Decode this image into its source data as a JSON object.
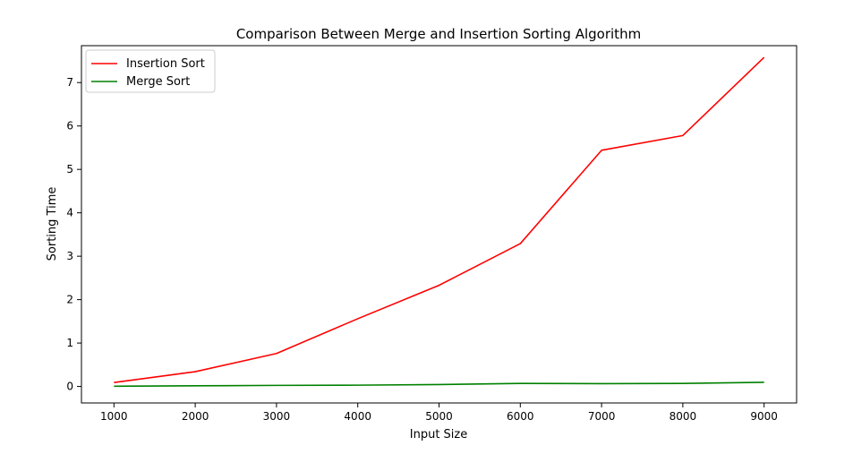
{
  "chart_data": {
    "type": "line",
    "title": "Comparison Between Merge and Insertion Sorting Algorithm",
    "xlabel": "Input Size",
    "ylabel": "Sorting Time",
    "x": [
      1000,
      2000,
      3000,
      4000,
      5000,
      6000,
      7000,
      8000,
      9000
    ],
    "xticks": [
      1000,
      2000,
      3000,
      4000,
      5000,
      6000,
      7000,
      8000,
      9000
    ],
    "yticks": [
      0,
      1,
      2,
      3,
      4,
      5,
      6,
      7
    ],
    "xlim": [
      600,
      9400
    ],
    "ylim": [
      -0.38,
      7.85
    ],
    "grid": false,
    "legend_position": "top-left",
    "series": [
      {
        "name": "Insertion Sort",
        "color": "#ff0000",
        "values": [
          0.09,
          0.34,
          0.76,
          1.56,
          2.33,
          3.29,
          5.44,
          5.78,
          7.58
        ]
      },
      {
        "name": "Merge Sort",
        "color": "#008000",
        "values": [
          0.005,
          0.015,
          0.025,
          0.03,
          0.045,
          0.07,
          0.065,
          0.07,
          0.095
        ]
      }
    ]
  }
}
